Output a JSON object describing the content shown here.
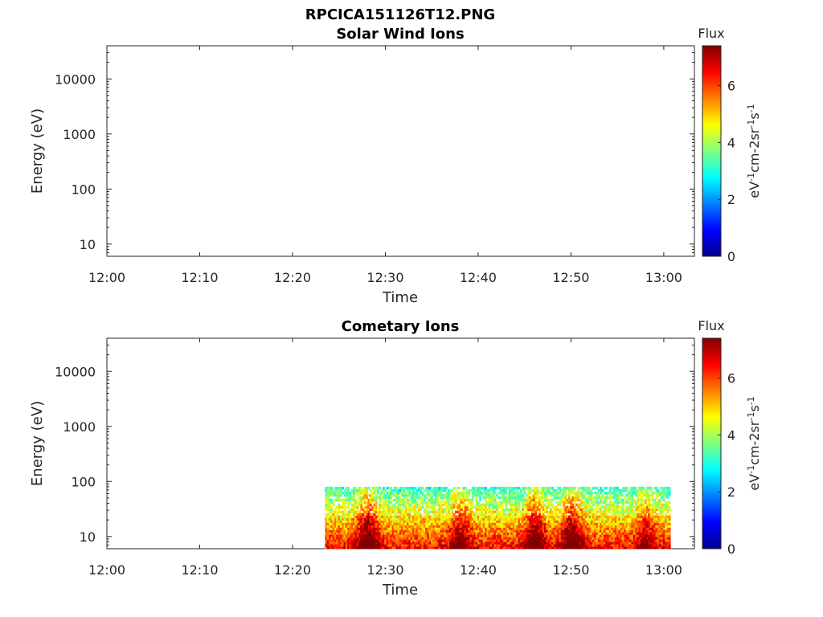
{
  "figure": {
    "title": "RPCICA151126T12.PNG"
  },
  "chart_data": [
    {
      "type": "heatmap",
      "title": "Solar Wind Ions",
      "xlabel": "Time",
      "ylabel": "Energy (eV)",
      "x_ticks": [
        "12:00",
        "12:10",
        "12:20",
        "12:30",
        "12:40",
        "12:50",
        "13:00"
      ],
      "y_ticks": [
        "10",
        "100",
        "1000",
        "10000"
      ],
      "y_scale": "log",
      "ylim": [
        6,
        40000
      ],
      "colorbar": {
        "title": "Flux",
        "label": "eV-1cm-2sr-1s-1",
        "ticks": [
          "0",
          "2",
          "4",
          "6"
        ],
        "range": [
          0,
          7.4
        ],
        "colormap": "jet"
      },
      "data": []
    },
    {
      "type": "heatmap",
      "title": "Cometary Ions",
      "xlabel": "Time",
      "ylabel": "Energy (eV)",
      "x_ticks": [
        "12:00",
        "12:10",
        "12:20",
        "12:30",
        "12:40",
        "12:50",
        "13:00"
      ],
      "y_ticks": [
        "10",
        "100",
        "1000",
        "10000"
      ],
      "y_scale": "log",
      "ylim": [
        6,
        40000
      ],
      "colorbar": {
        "title": "Flux",
        "label": "eV-1cm-2sr-1s-1",
        "ticks": [
          "0",
          "2",
          "4",
          "6"
        ],
        "range": [
          0,
          7.4
        ],
        "colormap": "jet"
      },
      "data_extent": {
        "time_start": "12:23:30",
        "time_end": "13:00:40",
        "energy_min": 6,
        "energy_max": 80
      },
      "intensity_peaks": [
        {
          "time": "12:28",
          "flux": 7.2
        },
        {
          "time": "12:38",
          "flux": 6.6
        },
        {
          "time": "12:46",
          "flux": 7.0
        },
        {
          "time": "12:50",
          "flux": 7.1
        },
        {
          "time": "12:58",
          "flux": 6.2
        }
      ]
    }
  ]
}
